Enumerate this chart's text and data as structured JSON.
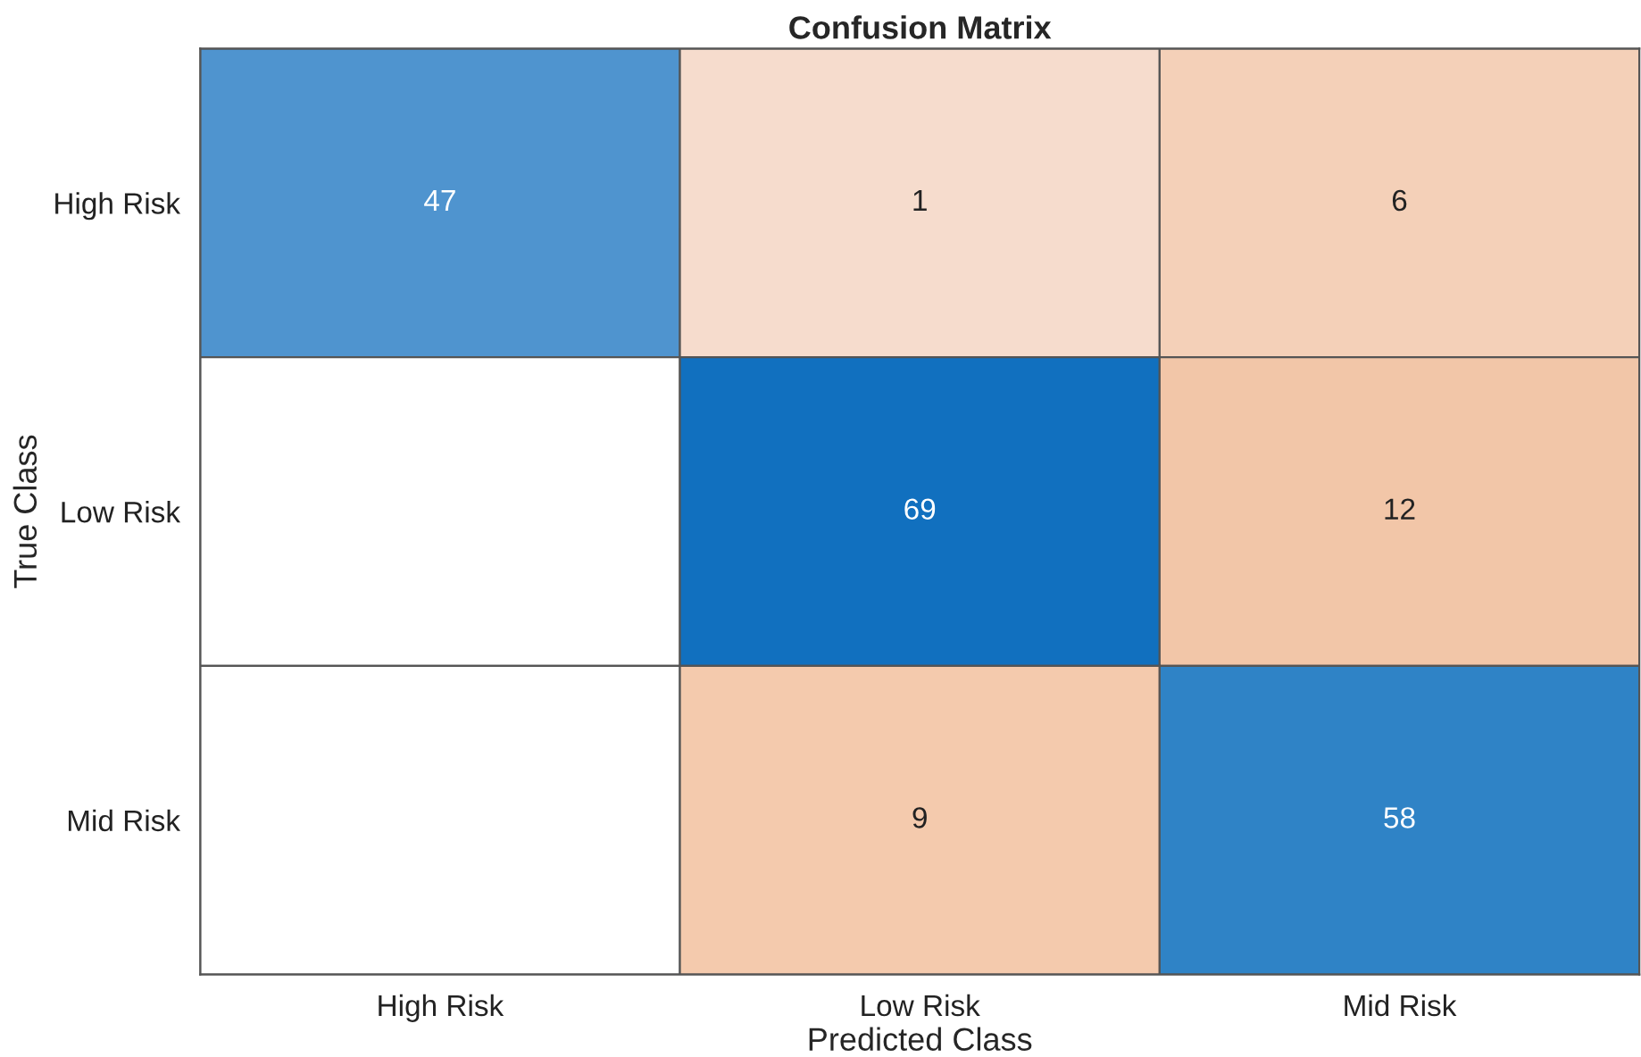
{
  "chart_data": {
    "type": "heatmap",
    "title": "Confusion Matrix",
    "xlabel": "Predicted Class",
    "ylabel": "True Class",
    "categories": [
      "High Risk",
      "Low Risk",
      "Mid Risk"
    ],
    "y_categories": [
      "High Risk",
      "Low Risk",
      "Mid Risk"
    ],
    "cells": [
      [
        47,
        1,
        6
      ],
      [
        null,
        69,
        12
      ],
      [
        null,
        9,
        58
      ]
    ],
    "colors": [
      [
        "#4f94cf",
        "#f6dccd",
        "#f4d0b8"
      ],
      [
        "#ffffff",
        "#1170bf",
        "#f2c6a8"
      ],
      [
        "#ffffff",
        "#f4caad",
        "#2f83c6"
      ]
    ],
    "data_labels": true
  }
}
